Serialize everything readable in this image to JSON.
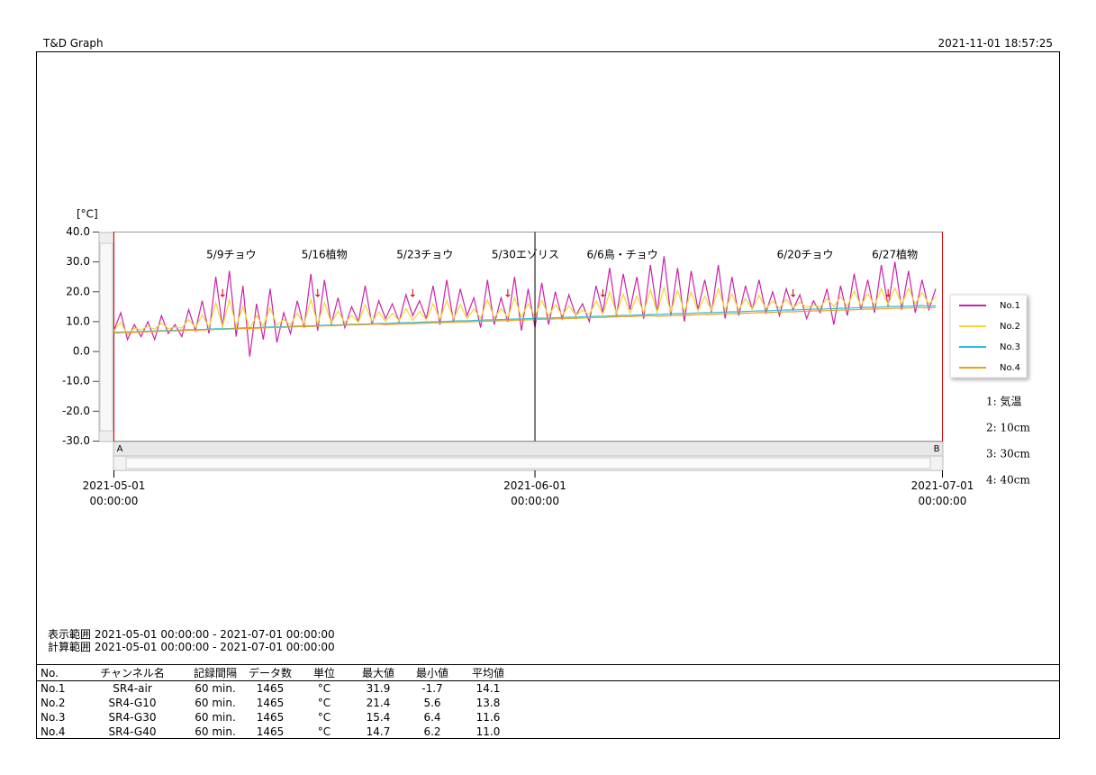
{
  "header": {
    "app": "T&D Graph",
    "timestamp": "2021-11-01 18:57:25"
  },
  "chart_data": {
    "type": "line",
    "y_label": "[°C]",
    "xlim": [
      "2021-05-01 00:00:00",
      "2021-07-01 00:00:00"
    ],
    "xticks": [
      "2021-05-01 00:00:00",
      "2021-06-01 00:00:00",
      "2021-07-01 00:00:00"
    ],
    "ylim": [
      -30,
      40
    ],
    "yticks": [
      {
        "value": 40,
        "label": "40.0"
      },
      {
        "value": 30,
        "label": "30.0"
      },
      {
        "value": 20,
        "label": "20.0"
      },
      {
        "value": 10,
        "label": "10.0"
      },
      {
        "value": 0,
        "label": "0.0"
      },
      {
        "value": -10,
        "label": "-10.0"
      },
      {
        "value": -20,
        "label": "-20.0"
      },
      {
        "value": -30,
        "label": "-30.0"
      }
    ],
    "cursor_x": "2021-06-01 00:00:00",
    "scroll_labels": [
      "A",
      "B"
    ],
    "annotations": [
      {
        "text": "5/9チョウ",
        "x": "2021-05-09 00:00:00"
      },
      {
        "text": "5/16植物",
        "x": "2021-05-16 00:00:00"
      },
      {
        "text": "5/23チョウ",
        "x": "2021-05-23 00:00:00"
      },
      {
        "text": "5/30エゾリス",
        "x": "2021-05-30 00:00:00"
      },
      {
        "text": "6/6鳥・チョウ",
        "x": "2021-06-06 00:00:00"
      },
      {
        "text": "6/20チョウ",
        "x": "2021-06-20 00:00:00"
      },
      {
        "text": "6/27植物",
        "x": "2021-06-27 00:00:00"
      }
    ],
    "arrow": "↓",
    "x": [
      "2021-05-01 00:00:00",
      "2021-05-01 12:00:00",
      "2021-05-02 00:00:00",
      "2021-05-02 12:00:00",
      "2021-05-03 00:00:00",
      "2021-05-03 12:00:00",
      "2021-05-04 00:00:00",
      "2021-05-04 12:00:00",
      "2021-05-05 00:00:00",
      "2021-05-05 12:00:00",
      "2021-05-06 00:00:00",
      "2021-05-06 12:00:00",
      "2021-05-07 00:00:00",
      "2021-05-07 12:00:00",
      "2021-05-08 00:00:00",
      "2021-05-08 12:00:00",
      "2021-05-09 00:00:00",
      "2021-05-09 12:00:00",
      "2021-05-10 00:00:00",
      "2021-05-10 12:00:00",
      "2021-05-11 00:00:00",
      "2021-05-11 12:00:00",
      "2021-05-12 00:00:00",
      "2021-05-12 12:00:00",
      "2021-05-13 00:00:00",
      "2021-05-13 12:00:00",
      "2021-05-14 00:00:00",
      "2021-05-14 12:00:00",
      "2021-05-15 00:00:00",
      "2021-05-15 12:00:00",
      "2021-05-16 00:00:00",
      "2021-05-16 12:00:00",
      "2021-05-17 00:00:00",
      "2021-05-17 12:00:00",
      "2021-05-18 00:00:00",
      "2021-05-18 12:00:00",
      "2021-05-19 00:00:00",
      "2021-05-19 12:00:00",
      "2021-05-20 00:00:00",
      "2021-05-20 12:00:00",
      "2021-05-21 00:00:00",
      "2021-05-21 12:00:00",
      "2021-05-22 00:00:00",
      "2021-05-22 12:00:00",
      "2021-05-23 00:00:00",
      "2021-05-23 12:00:00",
      "2021-05-24 00:00:00",
      "2021-05-24 12:00:00",
      "2021-05-25 00:00:00",
      "2021-05-25 12:00:00",
      "2021-05-26 00:00:00",
      "2021-05-26 12:00:00",
      "2021-05-27 00:00:00",
      "2021-05-27 12:00:00",
      "2021-05-28 00:00:00",
      "2021-05-28 12:00:00",
      "2021-05-29 00:00:00",
      "2021-05-29 12:00:00",
      "2021-05-30 00:00:00",
      "2021-05-30 12:00:00",
      "2021-05-31 00:00:00",
      "2021-05-31 12:00:00",
      "2021-06-01 00:00:00",
      "2021-06-01 12:00:00",
      "2021-06-02 00:00:00",
      "2021-06-02 12:00:00",
      "2021-06-03 00:00:00",
      "2021-06-03 12:00:00",
      "2021-06-04 00:00:00",
      "2021-06-04 12:00:00",
      "2021-06-05 00:00:00",
      "2021-06-05 12:00:00",
      "2021-06-06 00:00:00",
      "2021-06-06 12:00:00",
      "2021-06-07 00:00:00",
      "2021-06-07 12:00:00",
      "2021-06-08 00:00:00",
      "2021-06-08 12:00:00",
      "2021-06-09 00:00:00",
      "2021-06-09 12:00:00",
      "2021-06-10 00:00:00",
      "2021-06-10 12:00:00",
      "2021-06-11 00:00:00",
      "2021-06-11 12:00:00",
      "2021-06-12 00:00:00",
      "2021-06-12 12:00:00",
      "2021-06-13 00:00:00",
      "2021-06-13 12:00:00",
      "2021-06-14 00:00:00",
      "2021-06-14 12:00:00",
      "2021-06-15 00:00:00",
      "2021-06-15 12:00:00",
      "2021-06-16 00:00:00",
      "2021-06-16 12:00:00",
      "2021-06-17 00:00:00",
      "2021-06-17 12:00:00",
      "2021-06-18 00:00:00",
      "2021-06-18 12:00:00",
      "2021-06-19 00:00:00",
      "2021-06-19 12:00:00",
      "2021-06-20 00:00:00",
      "2021-06-20 12:00:00",
      "2021-06-21 00:00:00",
      "2021-06-21 12:00:00",
      "2021-06-22 00:00:00",
      "2021-06-22 12:00:00",
      "2021-06-23 00:00:00",
      "2021-06-23 12:00:00",
      "2021-06-24 00:00:00",
      "2021-06-24 12:00:00",
      "2021-06-25 00:00:00",
      "2021-06-25 12:00:00",
      "2021-06-26 00:00:00",
      "2021-06-26 12:00:00",
      "2021-06-27 00:00:00",
      "2021-06-27 12:00:00",
      "2021-06-28 00:00:00",
      "2021-06-28 12:00:00",
      "2021-06-29 00:00:00",
      "2021-06-29 12:00:00",
      "2021-06-30 00:00:00",
      "2021-06-30 12:00:00"
    ],
    "series": [
      {
        "name": "No.1",
        "color": "#cc22aa",
        "values": [
          7,
          13,
          4,
          9,
          5,
          10,
          4,
          12,
          6,
          9,
          5,
          14,
          7,
          17,
          6,
          25,
          8,
          27,
          5,
          22,
          -1.7,
          16,
          4,
          21,
          3,
          13,
          6,
          17,
          8,
          26,
          7,
          24,
          9,
          18,
          8,
          15,
          10,
          22,
          9,
          17,
          11,
          16,
          10,
          19,
          12,
          17,
          11,
          22,
          9,
          24,
          10,
          21,
          12,
          18,
          8,
          24,
          9,
          18,
          10,
          25,
          7,
          21,
          8,
          23,
          9,
          20,
          11,
          19,
          12,
          16,
          10,
          22,
          13,
          28,
          12,
          26,
          14,
          25,
          11,
          29,
          13,
          31.9,
          12,
          28,
          10,
          27,
          14,
          24,
          13,
          29,
          11,
          25,
          12,
          22,
          14,
          24,
          13,
          20,
          12,
          21,
          14,
          19,
          11,
          17,
          13,
          21,
          9,
          22,
          12,
          26,
          14,
          24,
          13,
          29,
          15,
          30,
          14,
          27,
          13,
          24,
          14,
          21
        ]
      },
      {
        "name": "No.2",
        "color": "#f2d830",
        "values": [
          7.0,
          9.8,
          5.6,
          7.8,
          7.3,
          8.4,
          7.5,
          9.5,
          7.7,
          8.1,
          7.9,
          10.7,
          8.0,
          12.2,
          8.2,
          16.3,
          8.3,
          17.4,
          8.5,
          15.0,
          7.5,
          12.0,
          8.6,
          14.6,
          8.8,
          10.7,
          9.0,
          12.8,
          9.1,
          17.3,
          9.3,
          16.4,
          9.5,
          13.5,
          9.7,
          12.1,
          9.8,
          15.6,
          10.0,
          13.2,
          10.1,
          12.8,
          10.3,
          14.4,
          10.4,
          13.4,
          10.6,
          16.0,
          10.7,
          17.1,
          10.9,
          15.7,
          11.0,
          14.2,
          11.2,
          17.3,
          11.3,
          14.4,
          11.5,
          18.0,
          11.6,
          16.0,
          11.8,
          17.1,
          11.9,
          15.7,
          12.1,
          15.3,
          12.2,
          13.8,
          12.4,
          16.9,
          12.5,
          20.0,
          12.7,
          19.1,
          12.8,
          18.6,
          13.0,
          20.7,
          13.1,
          21.4,
          13.3,
          20.4,
          13.4,
          19.9,
          13.6,
          18.5,
          13.7,
          21.1,
          13.9,
          19.2,
          14.0,
          17.7,
          14.2,
          18.8,
          14.3,
          16.9,
          14.5,
          17.5,
          14.6,
          16.5,
          14.8,
          15.6,
          14.9,
          17.7,
          15.1,
          18.3,
          15.2,
          20.3,
          15.4,
          19.4,
          15.5,
          21.0,
          15.7,
          21.2,
          15.8,
          21.1,
          16.0,
          19.7,
          15.9,
          18.2
        ]
      },
      {
        "name": "No.3",
        "color": "#2bbfd8",
        "values": [
          6.4,
          6.5,
          6.6,
          6.6,
          6.7,
          6.8,
          6.9,
          7.0,
          7.0,
          7.1,
          7.2,
          7.3,
          7.3,
          7.4,
          7.5,
          7.6,
          7.6,
          7.7,
          7.8,
          7.9,
          7.9,
          8.0,
          8.1,
          8.2,
          8.2,
          8.3,
          8.4,
          8.5,
          8.5,
          8.6,
          8.7,
          8.8,
          8.8,
          8.9,
          9.0,
          9.1,
          9.1,
          9.2,
          9.3,
          9.4,
          9.4,
          9.5,
          9.6,
          9.7,
          9.7,
          9.8,
          9.9,
          10.0,
          10.0,
          10.1,
          10.2,
          10.3,
          10.3,
          10.4,
          10.5,
          10.6,
          10.6,
          10.7,
          10.8,
          10.9,
          10.9,
          11.0,
          11.1,
          11.2,
          11.2,
          11.3,
          11.4,
          11.5,
          11.5,
          11.6,
          11.7,
          11.8,
          11.8,
          11.9,
          12.0,
          12.1,
          12.1,
          12.2,
          12.3,
          12.4,
          12.4,
          12.5,
          12.6,
          12.7,
          12.7,
          12.8,
          12.9,
          13.0,
          13.0,
          13.1,
          13.2,
          13.3,
          13.3,
          13.4,
          13.5,
          13.6,
          13.6,
          13.7,
          13.8,
          13.9,
          13.9,
          14.0,
          14.1,
          14.2,
          14.2,
          14.3,
          14.4,
          14.5,
          14.5,
          14.6,
          14.7,
          14.8,
          14.8,
          14.9,
          15.0,
          15.1,
          15.1,
          15.2,
          15.3,
          15.4,
          15.2,
          15.3
        ]
      },
      {
        "name": "No.4",
        "color": "#f39c1f",
        "values": [
          6.2,
          6.3,
          6.4,
          6.4,
          6.5,
          6.6,
          6.7,
          6.8,
          6.8,
          6.9,
          7.0,
          7.1,
          7.1,
          7.2,
          7.3,
          7.4,
          7.4,
          7.5,
          7.6,
          7.7,
          7.7,
          7.8,
          7.9,
          8.0,
          8.0,
          8.1,
          8.2,
          8.3,
          8.3,
          8.4,
          8.5,
          8.6,
          8.6,
          8.7,
          8.8,
          8.9,
          8.9,
          9.0,
          9.1,
          9.2,
          9.0,
          9.1,
          9.2,
          9.3,
          9.3,
          9.4,
          9.5,
          9.6,
          9.6,
          9.7,
          9.8,
          9.9,
          9.9,
          10.0,
          10.1,
          10.2,
          10.2,
          10.3,
          10.4,
          10.5,
          10.5,
          10.6,
          10.7,
          10.8,
          10.8,
          10.9,
          11.0,
          11.1,
          11.1,
          11.2,
          11.3,
          11.4,
          11.4,
          11.5,
          11.6,
          11.7,
          11.7,
          11.8,
          11.9,
          12.0,
          11.8,
          11.9,
          12.0,
          12.1,
          12.1,
          12.2,
          12.3,
          12.4,
          12.4,
          12.5,
          12.6,
          12.7,
          12.7,
          12.8,
          12.9,
          13.0,
          13.0,
          13.1,
          13.2,
          13.3,
          13.3,
          13.4,
          13.5,
          13.6,
          13.6,
          13.7,
          13.8,
          13.9,
          13.9,
          14.0,
          14.1,
          14.2,
          14.2,
          14.3,
          14.4,
          14.5,
          14.5,
          14.6,
          14.7,
          14.7,
          14.6,
          14.7
        ]
      }
    ],
    "legend": "right"
  },
  "channel_notes": [
    "1: 気温",
    "2: 10cm",
    "3: 30cm",
    "4: 40cm"
  ],
  "ranges": [
    "表示範囲 2021-05-01 00:00:00 - 2021-07-01 00:00:00",
    "計算範囲 2021-05-01 00:00:00 - 2021-07-01 00:00:00"
  ],
  "table": {
    "header": [
      "No.",
      "チャンネル名",
      "記録間隔",
      "データ数",
      "単位",
      "最大値",
      "最小値",
      "平均値"
    ],
    "rows": [
      [
        "No.1",
        "SR4-air",
        "60 min.",
        "1465",
        "°C",
        "31.9",
        "-1.7",
        "14.1"
      ],
      [
        "No.2",
        "SR4-G10",
        "60 min.",
        "1465",
        "°C",
        "21.4",
        "5.6",
        "13.8"
      ],
      [
        "No.3",
        "SR4-G30",
        "60 min.",
        "1465",
        "°C",
        "15.4",
        "6.4",
        "11.6"
      ],
      [
        "No.4",
        "SR4-G40",
        "60 min.",
        "1465",
        "°C",
        "14.7",
        "6.2",
        "11.0"
      ]
    ]
  }
}
